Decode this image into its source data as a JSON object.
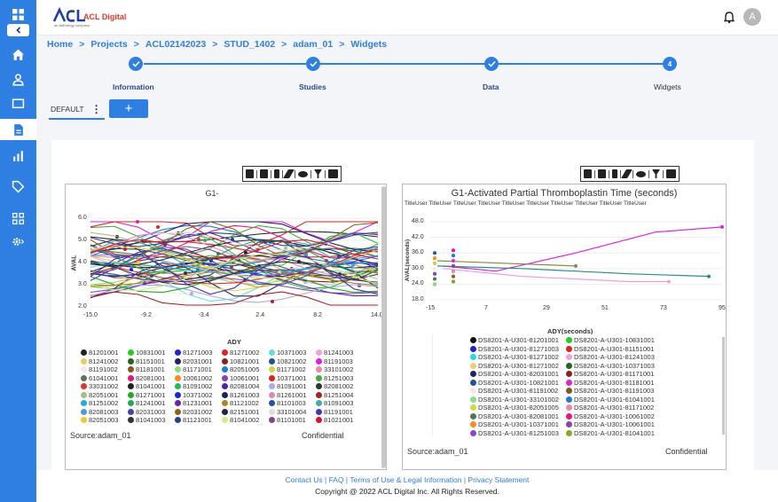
{
  "app": {
    "logo_text": "ACL Digital",
    "logo_tagline": "an AltEnergy company",
    "avatar_letter": "A"
  },
  "breadcrumb": [
    "Home",
    "Projects",
    "ACL02142023",
    "STUD_1402",
    "adam_01",
    "Widgets"
  ],
  "steps": [
    {
      "label": "Information"
    },
    {
      "label": "Studies"
    },
    {
      "label": "Data"
    },
    {
      "label": "Widgets",
      "num": "4"
    }
  ],
  "tabs": {
    "default_label": "DEFAULT",
    "add_label": "+"
  },
  "chart1": {
    "title": "G1-",
    "source": "Source:adam_01",
    "confidential": "Confidential",
    "xlabel": "ADY",
    "ylabel": "AVAL",
    "x_ticks": [
      "-15.0",
      "-9.2",
      "-3.4",
      "2.4",
      "8.2",
      "14.0"
    ],
    "y_ticks": [
      "6.0",
      "5.0",
      "4.0",
      "3.0",
      "2.0"
    ],
    "legend": [
      {
        "id": "81201001",
        "color": "#222222"
      },
      {
        "id": "10831001",
        "color": "#22cc22"
      },
      {
        "id": "81271003",
        "color": "#2222cc"
      },
      {
        "id": "81271002",
        "color": "#dd2222"
      },
      {
        "id": "10371003",
        "color": "#66dddd"
      },
      {
        "id": "81241003",
        "color": "#f0a0e0"
      },
      {
        "id": "81241002",
        "color": "#e0d060"
      },
      {
        "id": "81151001",
        "color": "#226622"
      },
      {
        "id": "82031001",
        "color": "#222266"
      },
      {
        "id": "10821001",
        "color": "#882222"
      },
      {
        "id": "10821002",
        "color": "#225588"
      },
      {
        "id": "81191003",
        "color": "#dd22dd"
      },
      {
        "id": "81191002",
        "color": "#f8e8e8"
      },
      {
        "id": "81181001",
        "color": "#885522"
      },
      {
        "id": "81171001",
        "color": "#88dd88"
      },
      {
        "id": "82051005",
        "color": "#2277dd"
      },
      {
        "id": "81171002",
        "color": "#ccdd44"
      },
      {
        "id": "33101002",
        "color": "#ee88aa"
      },
      {
        "id": "61041001",
        "color": "#557755"
      },
      {
        "id": "82081001",
        "color": "#ee1177"
      },
      {
        "id": "10061002",
        "color": "#ff8822"
      },
      {
        "id": "10061001",
        "color": "#8844aa"
      },
      {
        "id": "10371001",
        "color": "#dd2222"
      },
      {
        "id": "81251003",
        "color": "#44aa44"
      },
      {
        "id": "33031002",
        "color": "#dd3333"
      },
      {
        "id": "81041001",
        "color": "#222222"
      },
      {
        "id": "81091002",
        "color": "#22bb55"
      },
      {
        "id": "82081004",
        "color": "#5522aa"
      },
      {
        "id": "81091001",
        "color": "#aaaaee"
      },
      {
        "id": "82081002",
        "color": "#333333"
      },
      {
        "id": "82051001",
        "color": "#aabb88"
      },
      {
        "id": "81271001",
        "color": "#22aa22"
      },
      {
        "id": "10371002",
        "color": "#2222cc"
      },
      {
        "id": "81261003",
        "color": "#222255"
      },
      {
        "id": "81261001",
        "color": "#dd88bb"
      },
      {
        "id": "81251004",
        "color": "#aa2222"
      },
      {
        "id": "81251002",
        "color": "#22aadd"
      },
      {
        "id": "81241001",
        "color": "#22aa55"
      },
      {
        "id": "81231001",
        "color": "#6622aa"
      },
      {
        "id": "81121002",
        "color": "#aa8822"
      },
      {
        "id": "81101003",
        "color": "#2255aa"
      },
      {
        "id": "81091003",
        "color": "#44aaaa"
      },
      {
        "id": "82081003",
        "color": "#5599dd"
      },
      {
        "id": "82031003",
        "color": "#4444aa"
      },
      {
        "id": "82031002",
        "color": "#886622"
      },
      {
        "id": "82151001",
        "color": "#222244"
      },
      {
        "id": "33101004",
        "color": "#dddddd"
      },
      {
        "id": "81191001",
        "color": "#4433bb"
      },
      {
        "id": "82051003",
        "color": "#eecc33"
      },
      {
        "id": "81041003",
        "color": "#333333"
      },
      {
        "id": "81121001",
        "color": "#224488"
      },
      {
        "id": "81041002",
        "color": "#ccee88"
      },
      {
        "id": "81101001",
        "color": "#884488"
      },
      {
        "id": "81021001",
        "color": "#dd1133"
      }
    ]
  },
  "chart2": {
    "title": "G1-Activated Partial Thromboplastin Time (seconds)",
    "subtitle": "TitleUser TitleUser TitleUser TitleUser TitleUser TitleUser TitleUser TitleUser TitleUser TitleUser",
    "source": "Source:adam_01",
    "confidential": "Confidential",
    "xlabel": "ADY(seconds)",
    "ylabel": "AVAL(seconds)",
    "x_ticks": [
      "-15",
      "7",
      "29",
      "51",
      "73",
      "95"
    ],
    "y_ticks": [
      "48.0",
      "42.0",
      "36.0",
      "30.0",
      "24.0",
      "18.0"
    ],
    "legend": [
      {
        "id": "DS8201-A-U301-81201001",
        "color": "#111111"
      },
      {
        "id": "DS8201-A-U301-10831001",
        "color": "#22cc22"
      },
      {
        "id": "DS8201-A-U301-81271003",
        "color": "#2222cc"
      },
      {
        "id": "DS8201-A-U301-81151001",
        "color": "#dd2222"
      },
      {
        "id": "DS8201-A-U301-81271002",
        "color": "#22dddd"
      },
      {
        "id": "DS8201-A-U301-81241003",
        "color": "#f0a0e0"
      },
      {
        "id": "DS8201-A-U301-81271002",
        "color": "#eecc77"
      },
      {
        "id": "DS8201-A-U301-10371003",
        "color": "#226622"
      },
      {
        "id": "DS8201-A-U301-82031001",
        "color": "#222266"
      },
      {
        "id": "DS8201-A-U301-81171001",
        "color": "#882222"
      },
      {
        "id": "DS8201-A-U301-10821001",
        "color": "#225588"
      },
      {
        "id": "DS8201-A-U301-81181001",
        "color": "#dd22dd"
      },
      {
        "id": "DS8201-A-U301-81191002",
        "color": "#f8e8e8"
      },
      {
        "id": "DS8201-A-U301-81191003",
        "color": "#885522"
      },
      {
        "id": "DS8201-A-U301-33101002",
        "color": "#88dd88"
      },
      {
        "id": "DS8201-A-U301-61041001",
        "color": "#2277dd"
      },
      {
        "id": "DS8201-A-U301-82051005",
        "color": "#ccdd44"
      },
      {
        "id": "DS8201-A-U301-81171002",
        "color": "#ee88aa"
      },
      {
        "id": "DS8201-A-U301-82081001",
        "color": "#557755"
      },
      {
        "id": "DS8201-A-U301-10061002",
        "color": "#ee1177"
      },
      {
        "id": "DS8201-A-U301-10371001",
        "color": "#ff8822"
      },
      {
        "id": "DS8201-A-U301-10061001",
        "color": "#8844aa"
      },
      {
        "id": "DS8201-A-U301-81251003",
        "color": "#8844cc"
      },
      {
        "id": "DS8201-A-U301-81041001",
        "color": "#88aa22"
      }
    ]
  },
  "footer": {
    "links": "Contact Us | FAQ | Terms of Use & Legal Information | Privacy Statement",
    "copyright": "Copyright @ 2022 ACL Digital Inc. All Rights Reserved."
  }
}
